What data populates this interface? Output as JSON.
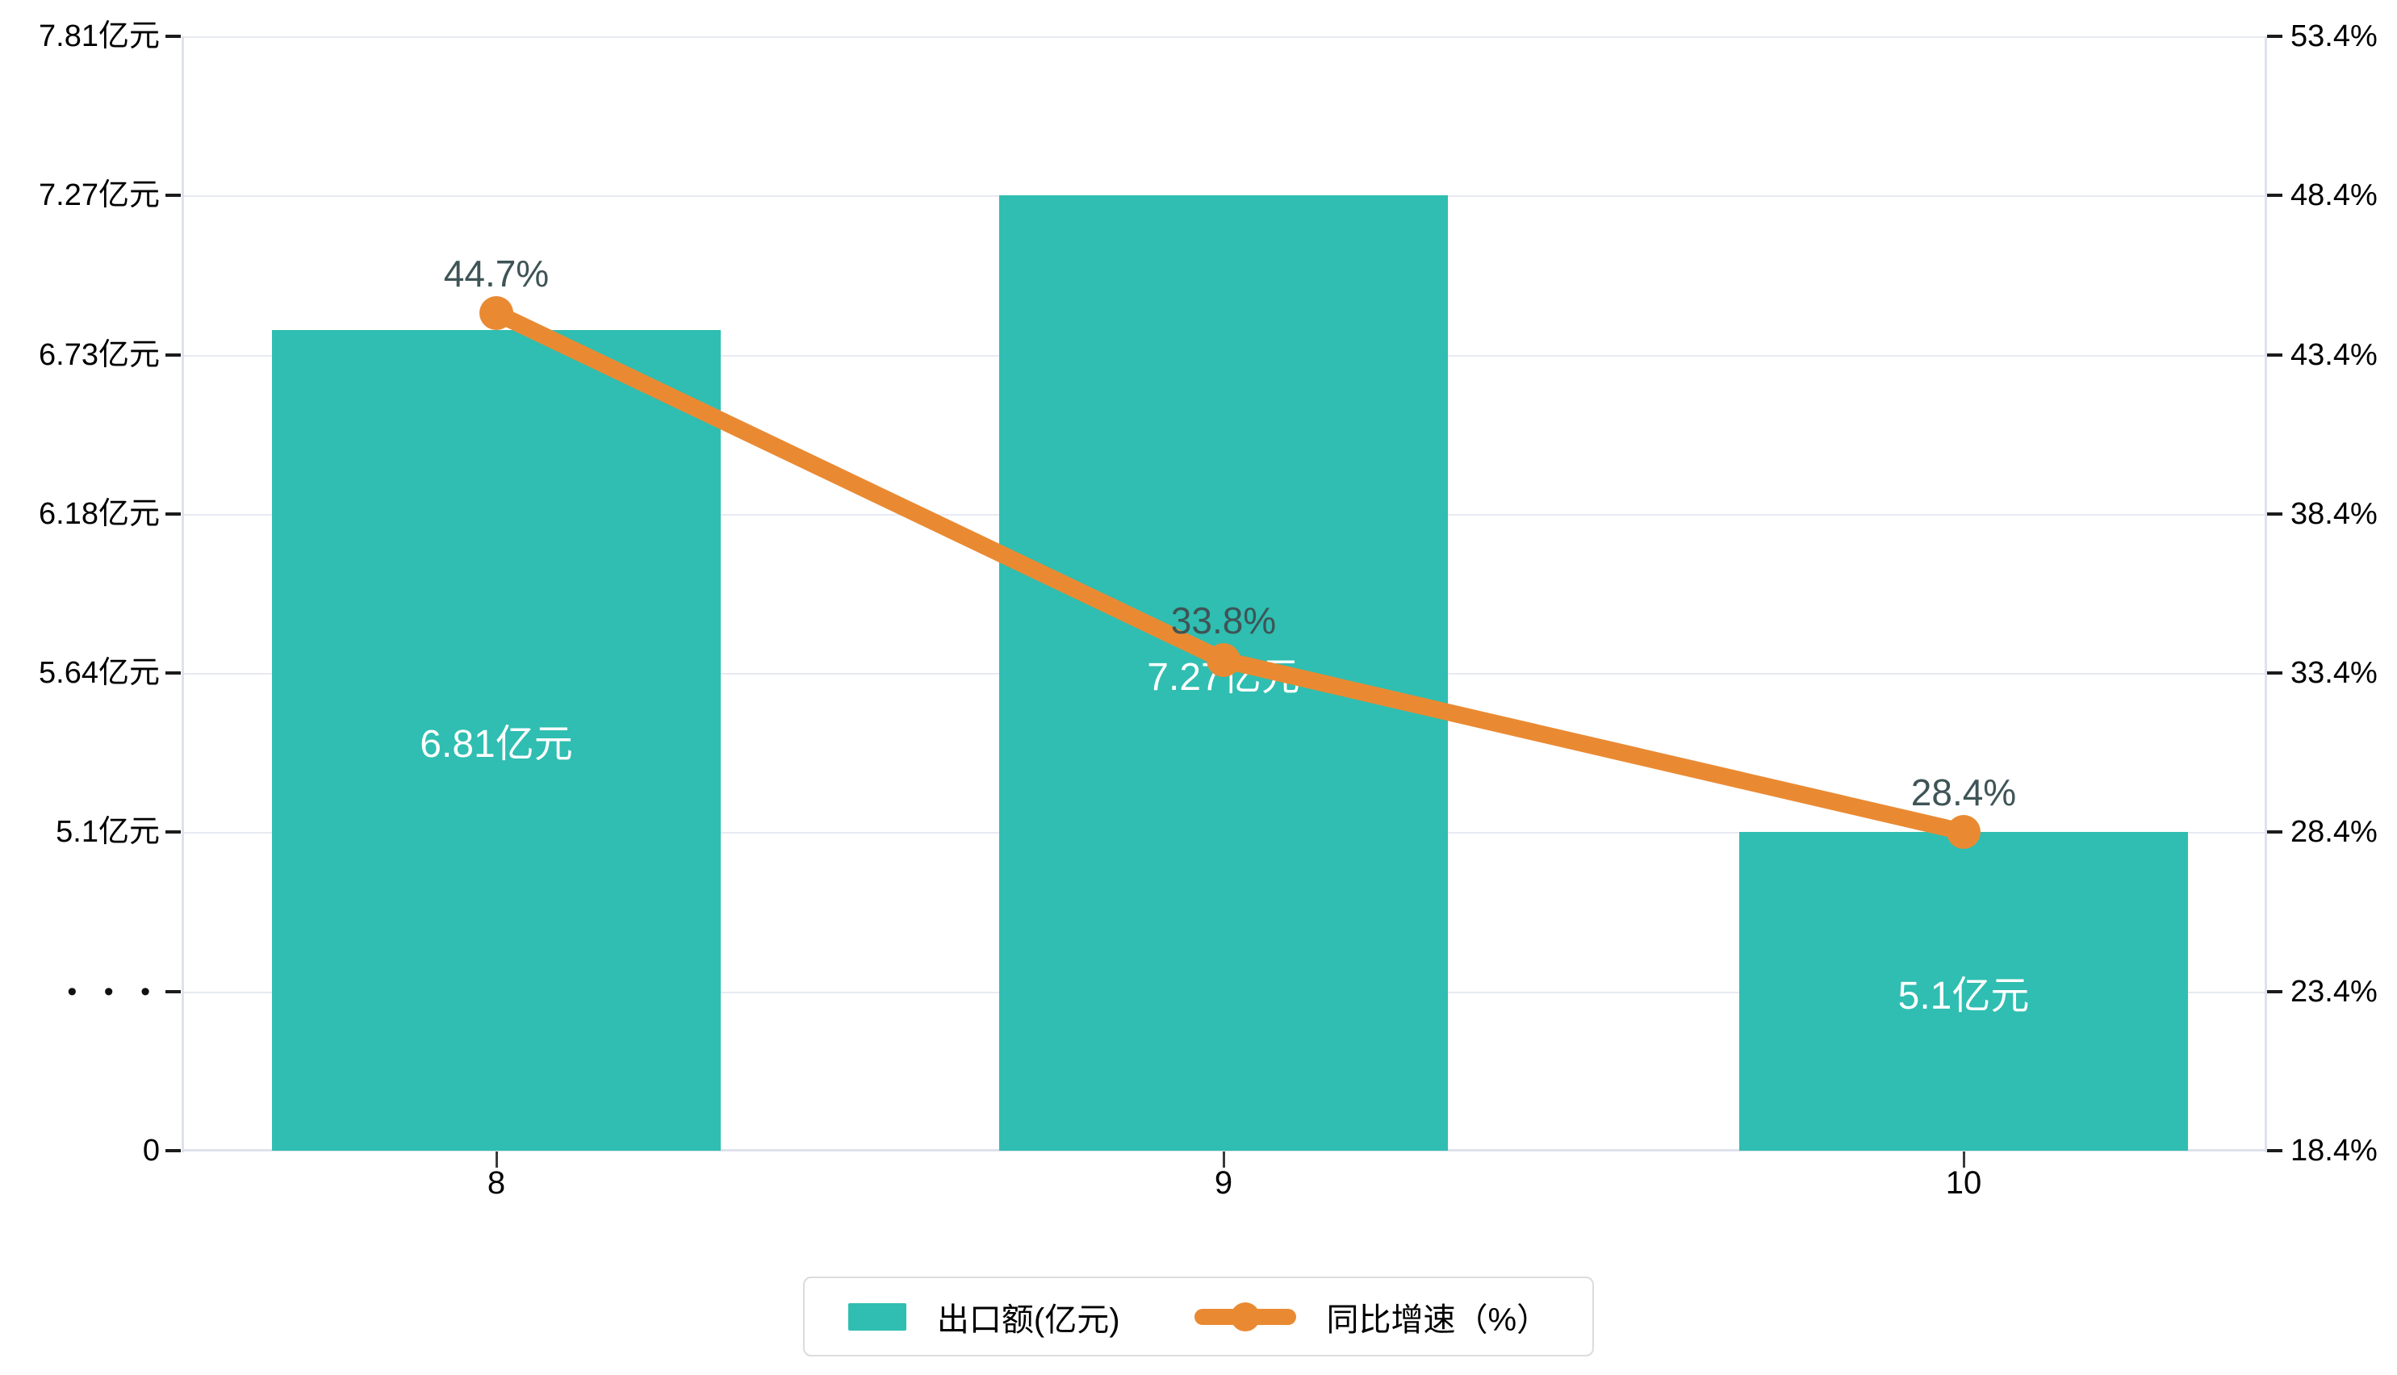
{
  "chart_data": {
    "type": "bar+line",
    "categories": [
      "8",
      "9",
      "10"
    ],
    "series": [
      {
        "name": "出口额(亿元)",
        "type": "bar",
        "values": [
          6.81,
          7.27,
          5.1
        ],
        "labels": [
          "6.81亿元",
          "7.27亿元",
          "5.1亿元"
        ],
        "unit": "亿元",
        "color": "#2FBEB1"
      },
      {
        "name": "同比增速（%）",
        "type": "line",
        "values": [
          44.7,
          33.8,
          28.4
        ],
        "labels": [
          "44.7%",
          "33.8%",
          "28.4%"
        ],
        "unit": "%",
        "color": "#E98A33"
      }
    ],
    "left_axis": {
      "tick_labels": [
        "7.81亿元",
        "7.27亿元",
        "6.73亿元",
        "6.18亿元",
        "5.64亿元",
        "5.1亿元",
        "• • •",
        "0"
      ],
      "tick_values": [
        7.81,
        7.27,
        6.73,
        6.18,
        5.64,
        5.1
      ],
      "zero_label": "0",
      "axis_break": true,
      "break_marker": "• • •"
    },
    "right_axis": {
      "tick_labels": [
        "53.4%",
        "48.4%",
        "43.4%",
        "38.4%",
        "33.4%",
        "28.4%",
        "23.4%",
        "18.4%"
      ],
      "min": 18.4,
      "max": 53.4,
      "step": 5
    },
    "grid": true,
    "legend_position": "bottom",
    "title": ""
  },
  "colors": {
    "bar": "#2FBEB1",
    "line": "#E98A33",
    "grid": "#E7EAF2",
    "axis": "#DDE2EC",
    "pct_label": "#3F5456"
  }
}
